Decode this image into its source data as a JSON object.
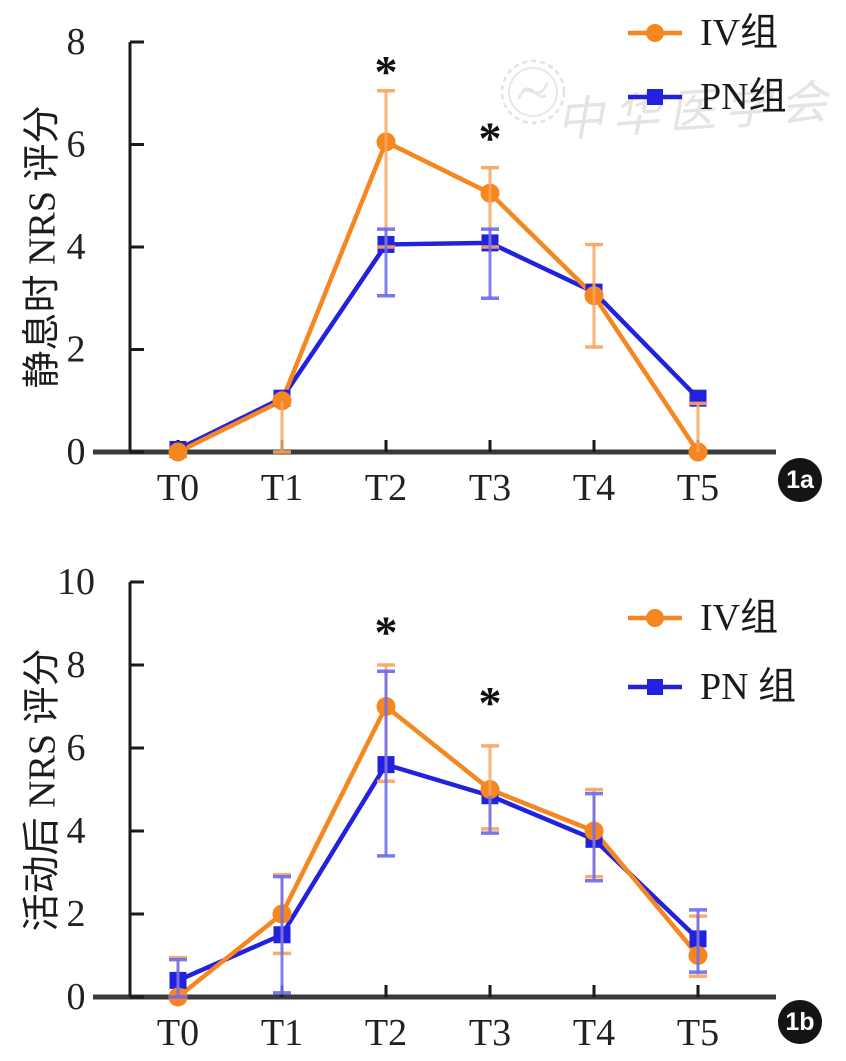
{
  "page": {
    "background": "#ffffff",
    "watermark": {
      "icon": "cma-seal-icon",
      "text": "中华医学会"
    }
  },
  "chart_data": [
    {
      "id": "1a",
      "type": "line",
      "badge": "1a",
      "title": "",
      "xlabel": "",
      "y_label": "静息时 NRS 评分",
      "ylim": [
        0,
        8
      ],
      "yticks": [
        0,
        2,
        4,
        6,
        8
      ],
      "categories": [
        "T0",
        "T1",
        "T2",
        "T3",
        "T4",
        "T5"
      ],
      "grid": false,
      "legend_position": "top-right",
      "legend": [
        {
          "label": "IV组"
        },
        {
          "label": "PN组"
        }
      ],
      "series": [
        {
          "name": "IV",
          "color": "#f6861f",
          "err_color": "#f8a55f",
          "marker": "circle",
          "values": [
            0,
            1.0,
            6.05,
            5.05,
            3.05,
            0
          ],
          "err_hi": [
            null,
            null,
            7.05,
            5.55,
            4.05,
            0.95
          ],
          "err_lo": [
            null,
            0,
            4.0,
            4.0,
            2.05,
            null
          ]
        },
        {
          "name": "PN",
          "color": "#2121de",
          "err_color": "#6b6bee",
          "marker": "square",
          "values": [
            0.05,
            1.05,
            4.05,
            4.08,
            3.12,
            1.05
          ],
          "err_hi": [
            null,
            null,
            4.35,
            4.35,
            null,
            null
          ],
          "err_lo": [
            null,
            null,
            3.05,
            3.0,
            null,
            null
          ]
        }
      ],
      "annotations": [
        {
          "category": "T2",
          "y": 7.55,
          "text": "*"
        },
        {
          "category": "T3",
          "y": 6.25,
          "text": "*"
        }
      ]
    },
    {
      "id": "1b",
      "type": "line",
      "badge": "1b",
      "title": "",
      "xlabel": "",
      "y_label": "活动后 NRS 评分",
      "ylim": [
        0,
        10
      ],
      "yticks": [
        0,
        2,
        4,
        6,
        8,
        10
      ],
      "categories": [
        "T0",
        "T1",
        "T2",
        "T3",
        "T4",
        "T5"
      ],
      "grid": false,
      "legend_position": "top-right",
      "legend": [
        {
          "label": "IV组"
        },
        {
          "label": "PN 组"
        }
      ],
      "series": [
        {
          "name": "IV",
          "color": "#f6861f",
          "err_color": "#f8a55f",
          "marker": "circle",
          "values": [
            0,
            2.0,
            7.0,
            5.0,
            4.0,
            1.0
          ],
          "err_hi": [
            0.95,
            2.95,
            8.0,
            6.05,
            5.0,
            1.95
          ],
          "err_lo": [
            null,
            1.05,
            5.2,
            4.05,
            2.9,
            0.5
          ]
        },
        {
          "name": "PN",
          "color": "#2121de",
          "err_color": "#6b6bee",
          "marker": "square",
          "values": [
            0.4,
            1.5,
            5.6,
            4.85,
            3.8,
            1.4
          ],
          "err_hi": [
            0.9,
            2.9,
            7.85,
            null,
            4.9,
            2.1
          ],
          "err_lo": [
            0,
            0.1,
            3.4,
            3.95,
            2.8,
            0.6
          ]
        }
      ],
      "annotations": [
        {
          "category": "T2",
          "y": 8.95,
          "text": "*"
        },
        {
          "category": "T3",
          "y": 7.25,
          "text": "*"
        }
      ]
    }
  ]
}
